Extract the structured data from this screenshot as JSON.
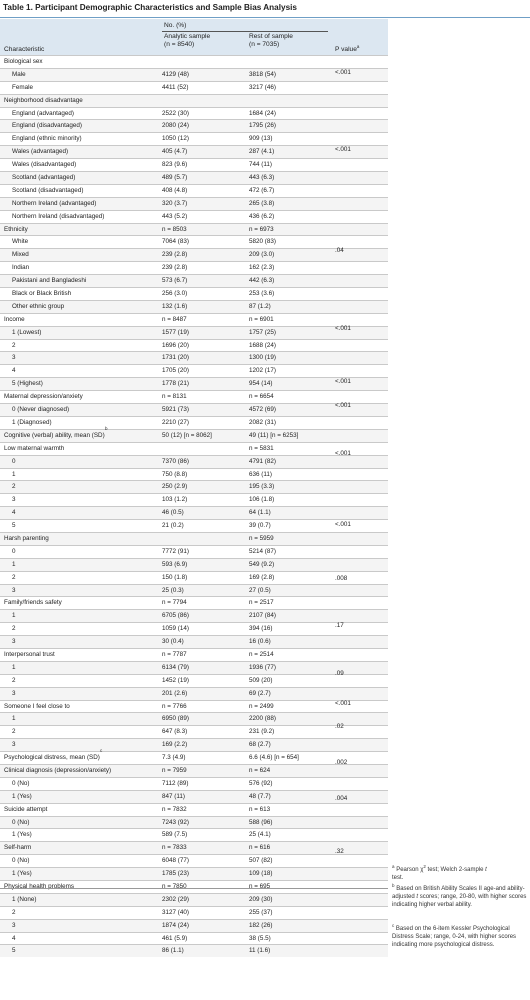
{
  "title": "Table 1. Participant Demographic Characteristics and Sample Bias Analysis",
  "header": {
    "no_pct": "No. (%)",
    "analytic_line1": "Analytic sample",
    "analytic_line2": "(n = 8540)",
    "rest_line1": "Rest of sample",
    "rest_line2": "(n = 7035)",
    "characteristic": "Characteristic",
    "p_value": "P value",
    "p_value_sup": "a"
  },
  "rows": [
    {
      "label": "Biological sex",
      "analytic": "",
      "rest": "",
      "sub": false
    },
    {
      "label": "Male",
      "analytic": "4129 (48)",
      "rest": "3818 (54)",
      "sub": true
    },
    {
      "label": "Female",
      "analytic": "4411 (52)",
      "rest": "3217 (46)",
      "sub": true
    },
    {
      "label": "Neighborhood disadvantage",
      "analytic": "",
      "rest": "",
      "sub": false
    },
    {
      "label": "England (advantaged)",
      "analytic": "2522 (30)",
      "rest": "1684 (24)",
      "sub": true
    },
    {
      "label": "England (disadvantaged)",
      "analytic": "2080 (24)",
      "rest": "1795 (26)",
      "sub": true
    },
    {
      "label": "England (ethnic minority)",
      "analytic": "1050 (12)",
      "rest": "909 (13)",
      "sub": true
    },
    {
      "label": "Wales (advantaged)",
      "analytic": "405 (4.7)",
      "rest": "287 (4.1)",
      "sub": true
    },
    {
      "label": "Wales (disadvantaged)",
      "analytic": "823 (9.6)",
      "rest": "744 (11)",
      "sub": true
    },
    {
      "label": "Scotland (advantaged)",
      "analytic": "489 (5.7)",
      "rest": "443 (6.3)",
      "sub": true
    },
    {
      "label": "Scotland (disadvantaged)",
      "analytic": "408 (4.8)",
      "rest": "472 (6.7)",
      "sub": true
    },
    {
      "label": "Northern Ireland (advantaged)",
      "analytic": "320 (3.7)",
      "rest": "265 (3.8)",
      "sub": true
    },
    {
      "label": "Northern Ireland (disadvantaged)",
      "analytic": "443 (5.2)",
      "rest": "436 (6.2)",
      "sub": true
    },
    {
      "label": "Ethnicity",
      "analytic": "n = 8503",
      "rest": "n = 6973",
      "sub": false
    },
    {
      "label": "White",
      "analytic": "7064 (83)",
      "rest": "5820 (83)",
      "sub": true
    },
    {
      "label": "Mixed",
      "analytic": "239 (2.8)",
      "rest": "209 (3.0)",
      "sub": true
    },
    {
      "label": "Indian",
      "analytic": "239 (2.8)",
      "rest": "162 (2.3)",
      "sub": true
    },
    {
      "label": "Pakistani and Bangladeshi",
      "analytic": "573 (6.7)",
      "rest": "442 (6.3)",
      "sub": true
    },
    {
      "label": "Black or Black British",
      "analytic": "256 (3.0)",
      "rest": "253 (3.6)",
      "sub": true
    },
    {
      "label": "Other ethnic group",
      "analytic": "132 (1.6)",
      "rest": "87 (1.2)",
      "sub": true
    },
    {
      "label": "Income",
      "analytic": "n = 8487",
      "rest": "n = 6901",
      "sub": false
    },
    {
      "label": "1 (Lowest)",
      "analytic": "1577 (19)",
      "rest": "1757 (25)",
      "sub": true
    },
    {
      "label": "2",
      "analytic": "1696 (20)",
      "rest": "1688 (24)",
      "sub": true
    },
    {
      "label": "3",
      "analytic": "1731 (20)",
      "rest": "1300 (19)",
      "sub": true
    },
    {
      "label": "4",
      "analytic": "1705 (20)",
      "rest": "1202 (17)",
      "sub": true
    },
    {
      "label": "5 (Highest)",
      "analytic": "1778 (21)",
      "rest": "954 (14)",
      "sub": true
    },
    {
      "label": "Maternal depression/anxiety",
      "analytic": "n = 8131",
      "rest": "n = 6654",
      "sub": false
    },
    {
      "label": "0 (Never diagnosed)",
      "analytic": "5921 (73)",
      "rest": "4572 (69)",
      "sub": true
    },
    {
      "label": "1 (Diagnosed)",
      "analytic": "2210 (27)",
      "rest": "2082 (31)",
      "sub": true
    },
    {
      "label": "Cognitive (verbal) ability, mean (SD)",
      "label_sup": "b",
      "analytic": "50 (12) [n = 8062]",
      "rest": "49 (11) [n = 6253]",
      "sub": false
    },
    {
      "label": "Low maternal warmth",
      "analytic": "",
      "rest": "n = 5831",
      "sub": false
    },
    {
      "label": "0",
      "analytic": "7370 (86)",
      "rest": "4791 (82)",
      "sub": true
    },
    {
      "label": "1",
      "analytic": "750 (8.8)",
      "rest": "636 (11)",
      "sub": true
    },
    {
      "label": "2",
      "analytic": "250 (2.9)",
      "rest": "195 (3.3)",
      "sub": true
    },
    {
      "label": "3",
      "analytic": "103 (1.2)",
      "rest": "106 (1.8)",
      "sub": true
    },
    {
      "label": "4",
      "analytic": "46 (0.5)",
      "rest": "64 (1.1)",
      "sub": true
    },
    {
      "label": "5",
      "analytic": "21 (0.2)",
      "rest": "39 (0.7)",
      "sub": true
    },
    {
      "label": "Harsh parenting",
      "analytic": "",
      "rest": "n = 5959",
      "sub": false
    },
    {
      "label": "0",
      "analytic": "7772 (91)",
      "rest": "5214 (87)",
      "sub": true
    },
    {
      "label": "1",
      "analytic": "593 (6.9)",
      "rest": "549 (9.2)",
      "sub": true
    },
    {
      "label": "2",
      "analytic": "150 (1.8)",
      "rest": "169 (2.8)",
      "sub": true
    },
    {
      "label": "3",
      "analytic": "25 (0.3)",
      "rest": "27 (0.5)",
      "sub": true
    },
    {
      "label": "Family/friends safety",
      "analytic": "n = 7794",
      "rest": "n = 2517",
      "sub": false
    },
    {
      "label": "1",
      "analytic": "6705 (86)",
      "rest": "2107 (84)",
      "sub": true
    },
    {
      "label": "2",
      "analytic": "1059 (14)",
      "rest": "394 (16)",
      "sub": true
    },
    {
      "label": "3",
      "analytic": "30 (0.4)",
      "rest": "16 (0.6)",
      "sub": true
    },
    {
      "label": "Interpersonal trust",
      "analytic": "n = 7787",
      "rest": "n = 2514",
      "sub": false
    },
    {
      "label": "1",
      "analytic": "6134 (79)",
      "rest": "1936 (77)",
      "sub": true
    },
    {
      "label": "2",
      "analytic": "1452 (19)",
      "rest": "509 (20)",
      "sub": true
    },
    {
      "label": "3",
      "analytic": "201 (2.6)",
      "rest": "69 (2.7)",
      "sub": true
    },
    {
      "label": "Someone I feel close to",
      "analytic": "n = 7766",
      "rest": "n = 2499",
      "sub": false
    },
    {
      "label": "1",
      "analytic": "6950 (89)",
      "rest": "2200 (88)",
      "sub": true
    },
    {
      "label": "2",
      "analytic": "647 (8.3)",
      "rest": "231 (9.2)",
      "sub": true
    },
    {
      "label": "3",
      "analytic": "169 (2.2)",
      "rest": "68 (2.7)",
      "sub": true
    },
    {
      "label": "Psychological distress, mean (SD)",
      "label_sup": "c",
      "analytic": "7.3 (4.9)",
      "rest": "6.6 (4.6) [n = 654]",
      "sub": false
    },
    {
      "label": "Clinical diagnosis (depression/anxiety)",
      "analytic": "n = 7959",
      "rest": "n = 624",
      "sub": false
    },
    {
      "label": "0 (No)",
      "analytic": "7112 (89)",
      "rest": "576 (92)",
      "sub": true
    },
    {
      "label": "1 (Yes)",
      "analytic": "847 (11)",
      "rest": "48 (7.7)",
      "sub": true
    },
    {
      "label": "Suicide attempt",
      "analytic": "n = 7832",
      "rest": "n = 613",
      "sub": false
    },
    {
      "label": "0 (No)",
      "analytic": "7243 (92)",
      "rest": "588 (96)",
      "sub": true
    },
    {
      "label": "1 (Yes)",
      "analytic": "589 (7.5)",
      "rest": "25 (4.1)",
      "sub": true
    },
    {
      "label": "Self-harm",
      "analytic": "n = 7833",
      "rest": "n = 616",
      "sub": false
    },
    {
      "label": "0 (No)",
      "analytic": "6048 (77)",
      "rest": "507 (82)",
      "sub": true
    },
    {
      "label": "1 (Yes)",
      "analytic": "1785 (23)",
      "rest": "109 (18)",
      "sub": true
    },
    {
      "label": "Physical health problems",
      "analytic": "n = 7850",
      "rest": "n = 695",
      "sub": false
    },
    {
      "label": "1 (None)",
      "analytic": "2302 (29)",
      "rest": "209 (30)",
      "sub": true
    },
    {
      "label": "2",
      "analytic": "3127 (40)",
      "rest": "255 (37)",
      "sub": true
    },
    {
      "label": "3",
      "analytic": "1874 (24)",
      "rest": "182 (26)",
      "sub": true
    },
    {
      "label": "4",
      "analytic": "461 (5.9)",
      "rest": "38 (5.5)",
      "sub": true
    },
    {
      "label": "5",
      "analytic": "86 (1.1)",
      "rest": "11 (1.6)",
      "sub": true
    }
  ],
  "p_values": [
    {
      "first": 0,
      "last": 2,
      "value": "<.001"
    },
    {
      "first": 3,
      "last": 12,
      "value": "<.001"
    },
    {
      "first": 13,
      "last": 19,
      "value": ".04"
    },
    {
      "first": 20,
      "last": 25,
      "value": "<.001"
    },
    {
      "first": 26,
      "last": 28,
      "value": "<.001"
    },
    {
      "first": 29,
      "last": 29,
      "value": "<.001"
    },
    {
      "first": 30,
      "last": 36,
      "value": "<.001"
    },
    {
      "first": 37,
      "last": 41,
      "value": "<.001"
    },
    {
      "first": 42,
      "last": 45,
      "value": ".008"
    },
    {
      "first": 46,
      "last": 49,
      "value": ".17"
    },
    {
      "first": 50,
      "last": 53,
      "value": ".09"
    },
    {
      "first": 54,
      "last": 54,
      "value": "<.001"
    },
    {
      "first": 55,
      "last": 57,
      "value": ".02"
    },
    {
      "first": 58,
      "last": 60,
      "value": ".002"
    },
    {
      "first": 61,
      "last": 63,
      "value": ".004"
    },
    {
      "first": 64,
      "last": 69,
      "value": ".32"
    }
  ],
  "footnotes": {
    "a_mark": "a",
    "a_text_pre": "Pearson χ",
    "a_text_sup": "2",
    "a_text_mid": " test; Welch 2-sample ",
    "a_text_t": "t",
    "a_text_end": " test.",
    "b_mark": "b",
    "b_text_pre": "Based on British Ability Scales II age-and ability-adjusted ",
    "b_text_t": "t",
    "b_text_end": " scores; range, 20-80, with higher scores indicating higher verbal ability.",
    "c_mark": "c",
    "c_text": "Based on the 6-item Kessler Psychological Distress Scale; range, 0-24, with higher scores indicating more psychological distress."
  }
}
